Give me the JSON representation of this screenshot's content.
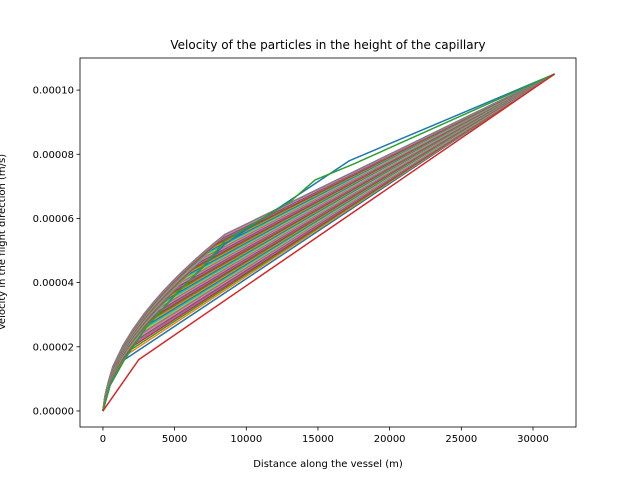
{
  "chart_data": {
    "type": "line",
    "title": "Velocity of the particles in the height of the capillary",
    "xlabel": "Distance along the vessel (m)",
    "ylabel": "Velocity in the flight direction (m/s)",
    "xlim": [
      -1600,
      33000
    ],
    "ylim": [
      -5e-06,
      0.00011
    ],
    "xticks": [
      0,
      5000,
      10000,
      15000,
      20000,
      25000,
      30000
    ],
    "xtick_labels": [
      "0",
      "5000",
      "10000",
      "15000",
      "20000",
      "25000",
      "30000"
    ],
    "yticks": [
      0,
      2e-05,
      4e-05,
      6e-05,
      8e-05,
      0.0001
    ],
    "ytick_labels": [
      "0.00000",
      "0.00002",
      "0.00004",
      "0.00006",
      "0.00008",
      "0.00010"
    ],
    "grid": false,
    "legend": "none",
    "series_count": 48,
    "end_point": [
      31500,
      0.000105
    ],
    "start_point": [
      0,
      0
    ],
    "knee_x_range": [
      1500,
      8500
    ],
    "knee_y_range": [
      1.6e-05,
      5.5e-05
    ],
    "palette": [
      "#1f77b4",
      "#ff7f0e",
      "#2ca02c",
      "#d62728",
      "#9467bd",
      "#8c564b",
      "#e377c2",
      "#7f7f7f",
      "#bcbd22",
      "#17becf"
    ],
    "highlight_series": [
      {
        "x": [
          0,
          500,
          1500,
          3000,
          5000,
          7000,
          8500,
          12500,
          17200,
          31500
        ],
        "y": [
          0,
          8e-06,
          1.6e-05,
          2.6e-05,
          3.6e-05,
          4.5e-05,
          5.2e-05,
          6.4e-05,
          7.8e-05,
          0.000105
        ],
        "color": "#1f77b4"
      },
      {
        "x": [
          0,
          500,
          1500,
          3000,
          5000,
          7000,
          8500,
          13000,
          14800,
          17500,
          31500
        ],
        "y": [
          0,
          8e-06,
          1.6e-05,
          2.6e-05,
          3.6e-05,
          4.5e-05,
          5.3e-05,
          6.5e-05,
          7.2e-05,
          7.7e-05,
          0.000105
        ],
        "color": "#2ca02c"
      },
      {
        "x": [
          0,
          2500,
          31500
        ],
        "y": [
          0,
          1.6e-05,
          0.000105
        ],
        "color": "#d62728"
      }
    ]
  }
}
